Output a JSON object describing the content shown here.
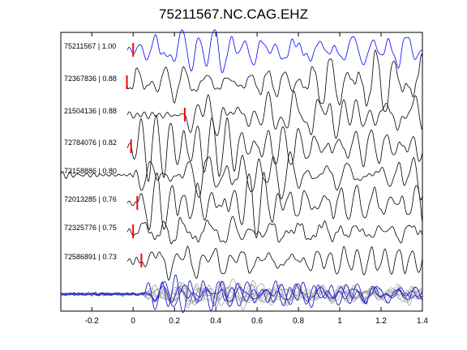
{
  "chart_data": {
    "type": "line",
    "title": "75211567.NC.CAG.EHZ",
    "xlabel": "",
    "ylabel": "",
    "xlim": [
      -0.35,
      1.4
    ],
    "xticks": [
      -0.2,
      0,
      0.2,
      0.4,
      0.6,
      0.8,
      1,
      1.2,
      1.4
    ],
    "xtick_labels": [
      "-0.2",
      "0",
      "0.2",
      "0.4",
      "0.6",
      "0.8",
      "1",
      "1.2",
      "1.4"
    ],
    "grid": false,
    "legend": "none",
    "colors": {
      "reference": "#0000ff",
      "trace": "#000000",
      "pick": "#ff0000",
      "stack_gray": "#9a9a9a",
      "stack_blue": "#2020c8"
    },
    "series": [
      {
        "label": "75211567 | 1.00",
        "pick_time": 0.0,
        "color": "#0000ff"
      },
      {
        "label": "72367836 | 0.88",
        "pick_time": -0.03,
        "color": "#000000"
      },
      {
        "label": "21504136 | 0.88",
        "pick_time": 0.25,
        "color": "#000000"
      },
      {
        "label": "72784076 | 0.82",
        "pick_time": -0.01,
        "color": "#000000"
      },
      {
        "label": "73158886 | 0.80",
        "pick_time": null,
        "color": "#000000"
      },
      {
        "label": "72013285 | 0.76",
        "pick_time": 0.02,
        "color": "#000000"
      },
      {
        "label": "72325776 | 0.75",
        "pick_time": 0.0,
        "color": "#000000"
      },
      {
        "label": "72586891 | 0.73",
        "pick_time": 0.04,
        "color": "#000000"
      }
    ]
  }
}
